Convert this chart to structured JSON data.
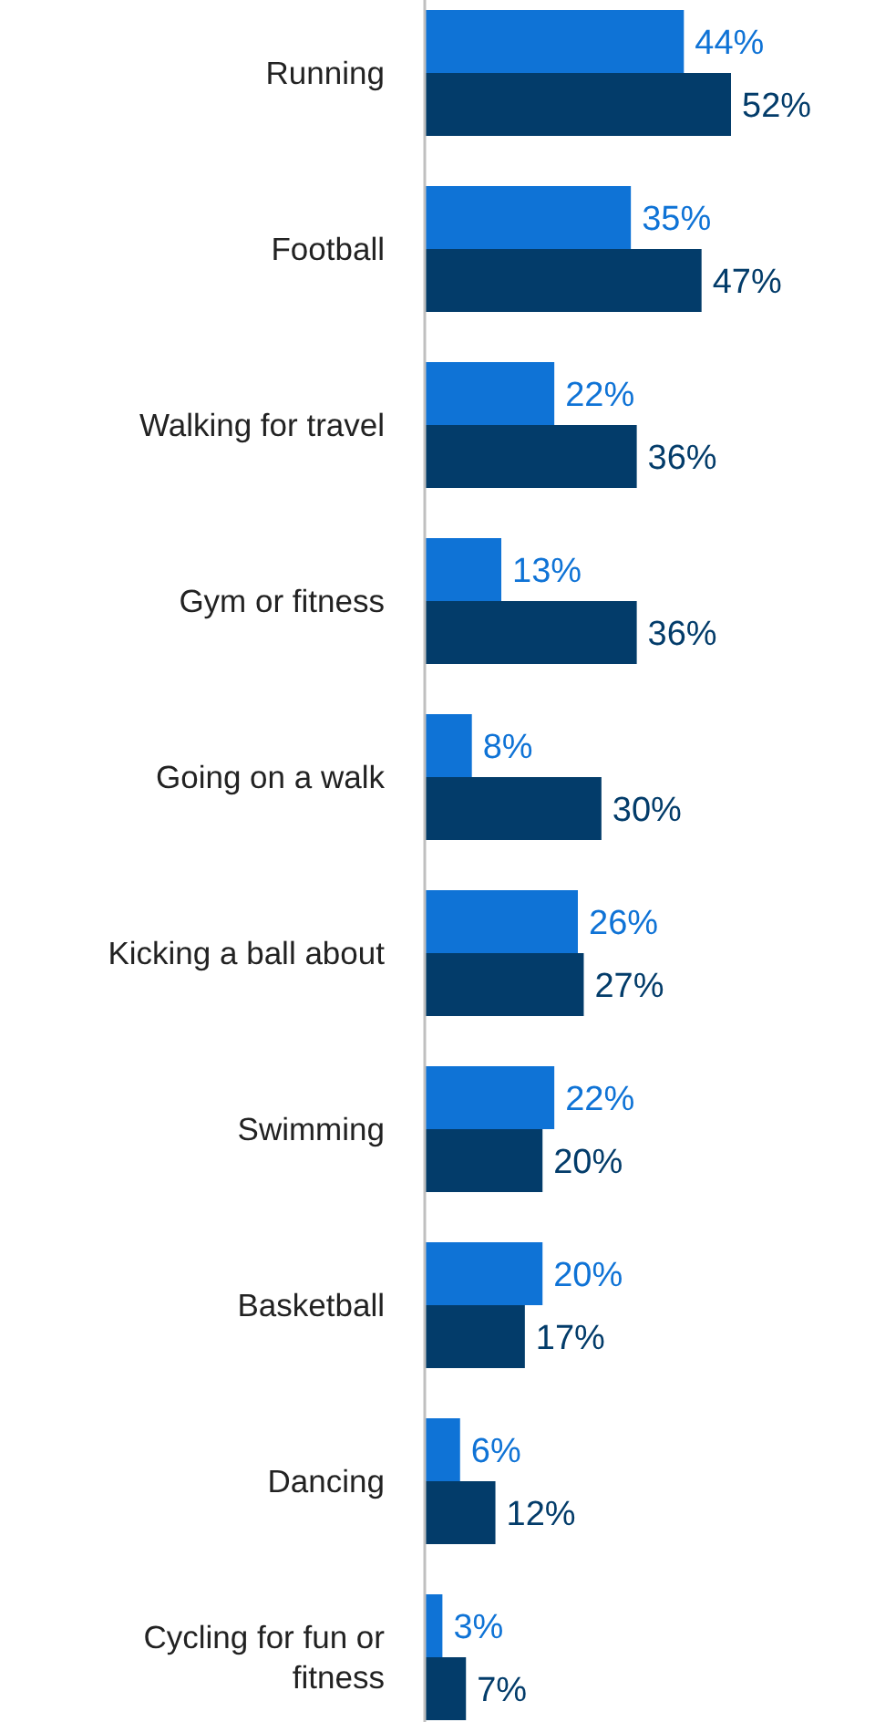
{
  "chart_data": {
    "type": "bar",
    "orientation": "horizontal",
    "categories": [
      "Running",
      "Football",
      "Walking for travel",
      "Gym or fitness",
      "Going on a walk",
      "Kicking a ball about",
      "Swimming",
      "Basketball",
      "Dancing",
      "Cycling for fun or fitness"
    ],
    "series": [
      {
        "color": "#0f73d6",
        "values": [
          44,
          35,
          22,
          13,
          8,
          26,
          22,
          20,
          6,
          3
        ],
        "value_labels": [
          "44%",
          "35%",
          "22%",
          "13%",
          "8%",
          "26%",
          "22%",
          "20%",
          "6%",
          "3%"
        ]
      },
      {
        "color": "#033c6a",
        "values": [
          52,
          47,
          36,
          36,
          30,
          27,
          20,
          17,
          12,
          7
        ],
        "value_labels": [
          "52%",
          "47%",
          "36%",
          "36%",
          "30%",
          "27%",
          "20%",
          "17%",
          "12%",
          "7%"
        ]
      }
    ]
  }
}
